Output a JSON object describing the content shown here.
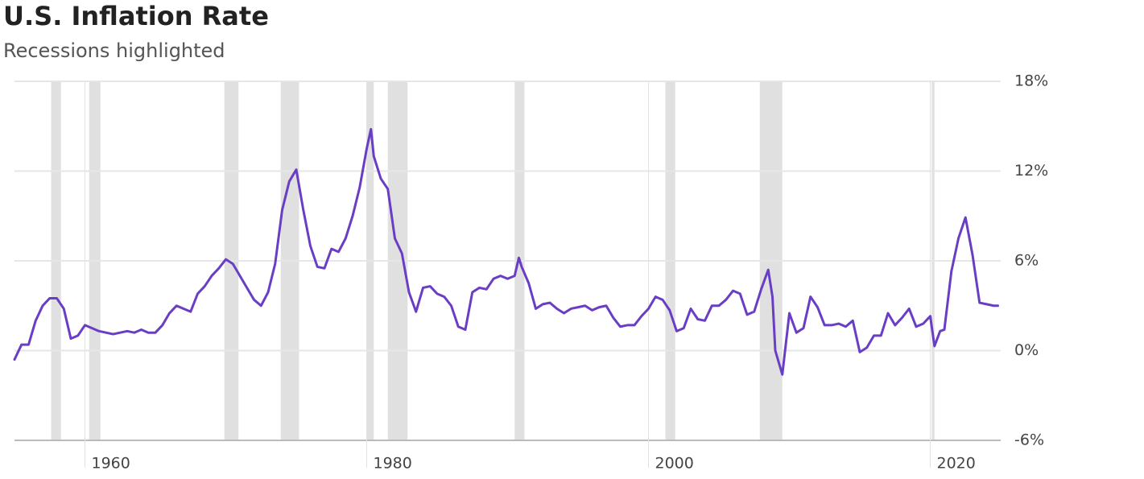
{
  "chart_data": {
    "type": "line",
    "title": "U.S. Inflation Rate",
    "subtitle": "Recessions highlighted",
    "color": "#6a3ec4",
    "recession_color": "#e0e0e0",
    "grid": true,
    "xlim": [
      1955,
      2025
    ],
    "xticks": [
      1960,
      1980,
      2000,
      2020
    ],
    "ylim": [
      -6,
      18
    ],
    "yticks": [
      {
        "value": 18,
        "label": "18%"
      },
      {
        "value": 12,
        "label": "12%"
      },
      {
        "value": 6,
        "label": "6%"
      },
      {
        "value": 0,
        "label": "0%"
      },
      {
        "value": -6,
        "label": "-6%"
      }
    ],
    "recessions": [
      [
        1957.6,
        1958.3
      ],
      [
        1960.3,
        1961.1
      ],
      [
        1969.9,
        1970.9
      ],
      [
        1973.9,
        1975.2
      ],
      [
        1980.0,
        1980.5
      ],
      [
        1981.5,
        1982.9
      ],
      [
        1990.5,
        1991.2
      ],
      [
        2001.2,
        2001.9
      ],
      [
        2007.9,
        2009.5
      ],
      [
        2020.1,
        2020.3
      ]
    ],
    "x": [
      1955.0,
      1955.5,
      1956.0,
      1956.5,
      1957.0,
      1957.5,
      1958.0,
      1958.5,
      1959.0,
      1959.5,
      1960.0,
      1960.5,
      1961.0,
      1961.5,
      1962.0,
      1962.5,
      1963.0,
      1963.5,
      1964.0,
      1964.5,
      1965.0,
      1965.5,
      1966.0,
      1966.5,
      1967.0,
      1967.5,
      1968.0,
      1968.5,
      1969.0,
      1969.5,
      1970.0,
      1970.5,
      1971.0,
      1971.5,
      1972.0,
      1972.5,
      1973.0,
      1973.5,
      1974.0,
      1974.5,
      1975.0,
      1975.5,
      1976.0,
      1976.5,
      1977.0,
      1977.5,
      1978.0,
      1978.5,
      1979.0,
      1979.5,
      1980.0,
      1980.3,
      1980.5,
      1981.0,
      1981.5,
      1982.0,
      1982.5,
      1983.0,
      1983.5,
      1984.0,
      1984.5,
      1985.0,
      1985.5,
      1986.0,
      1986.5,
      1987.0,
      1987.5,
      1988.0,
      1988.5,
      1989.0,
      1989.5,
      1990.0,
      1990.5,
      1990.8,
      1991.0,
      1991.5,
      1992.0,
      1992.5,
      1993.0,
      1993.5,
      1994.0,
      1994.5,
      1995.0,
      1995.5,
      1996.0,
      1996.5,
      1997.0,
      1997.5,
      1998.0,
      1998.5,
      1999.0,
      1999.5,
      2000.0,
      2000.5,
      2001.0,
      2001.5,
      2002.0,
      2002.5,
      2003.0,
      2003.5,
      2004.0,
      2004.5,
      2005.0,
      2005.5,
      2006.0,
      2006.5,
      2007.0,
      2007.5,
      2008.0,
      2008.5,
      2008.8,
      2009.0,
      2009.5,
      2010.0,
      2010.5,
      2011.0,
      2011.5,
      2012.0,
      2012.5,
      2013.0,
      2013.5,
      2014.0,
      2014.5,
      2015.0,
      2015.5,
      2016.0,
      2016.5,
      2017.0,
      2017.5,
      2018.0,
      2018.5,
      2019.0,
      2019.5,
      2020.0,
      2020.3,
      2020.7,
      2021.0,
      2021.5,
      2022.0,
      2022.5,
      2023.0,
      2023.5,
      2024.0,
      2024.5,
      2024.8
    ],
    "values": [
      -0.6,
      0.4,
      0.4,
      2.0,
      3.0,
      3.5,
      3.5,
      2.8,
      0.8,
      1.0,
      1.7,
      1.5,
      1.3,
      1.2,
      1.1,
      1.2,
      1.3,
      1.2,
      1.4,
      1.2,
      1.2,
      1.7,
      2.5,
      3.0,
      2.8,
      2.6,
      3.8,
      4.3,
      5.0,
      5.5,
      6.1,
      5.8,
      5.0,
      4.2,
      3.4,
      3.0,
      3.9,
      5.8,
      9.4,
      11.3,
      12.1,
      9.4,
      7.0,
      5.6,
      5.5,
      6.8,
      6.6,
      7.5,
      9.0,
      10.9,
      13.5,
      14.8,
      13.0,
      11.5,
      10.8,
      7.5,
      6.5,
      3.9,
      2.6,
      4.2,
      4.3,
      3.8,
      3.6,
      3.0,
      1.6,
      1.4,
      3.9,
      4.2,
      4.1,
      4.8,
      5.0,
      4.8,
      5.0,
      6.2,
      5.6,
      4.5,
      2.8,
      3.1,
      3.2,
      2.8,
      2.5,
      2.8,
      2.9,
      3.0,
      2.7,
      2.9,
      3.0,
      2.2,
      1.6,
      1.7,
      1.7,
      2.3,
      2.8,
      3.6,
      3.4,
      2.7,
      1.3,
      1.5,
      2.8,
      2.1,
      2.0,
      3.0,
      3.0,
      3.4,
      4.0,
      3.8,
      2.4,
      2.6,
      4.1,
      5.4,
      3.6,
      0.0,
      -1.6,
      2.5,
      1.2,
      1.5,
      3.6,
      2.9,
      1.7,
      1.7,
      1.8,
      1.6,
      2.0,
      -0.1,
      0.2,
      1.0,
      1.0,
      2.5,
      1.7,
      2.2,
      2.8,
      1.6,
      1.8,
      2.3,
      0.3,
      1.3,
      1.4,
      5.3,
      7.5,
      8.9,
      6.4,
      3.2,
      3.1,
      3.0,
      3.0
    ]
  }
}
